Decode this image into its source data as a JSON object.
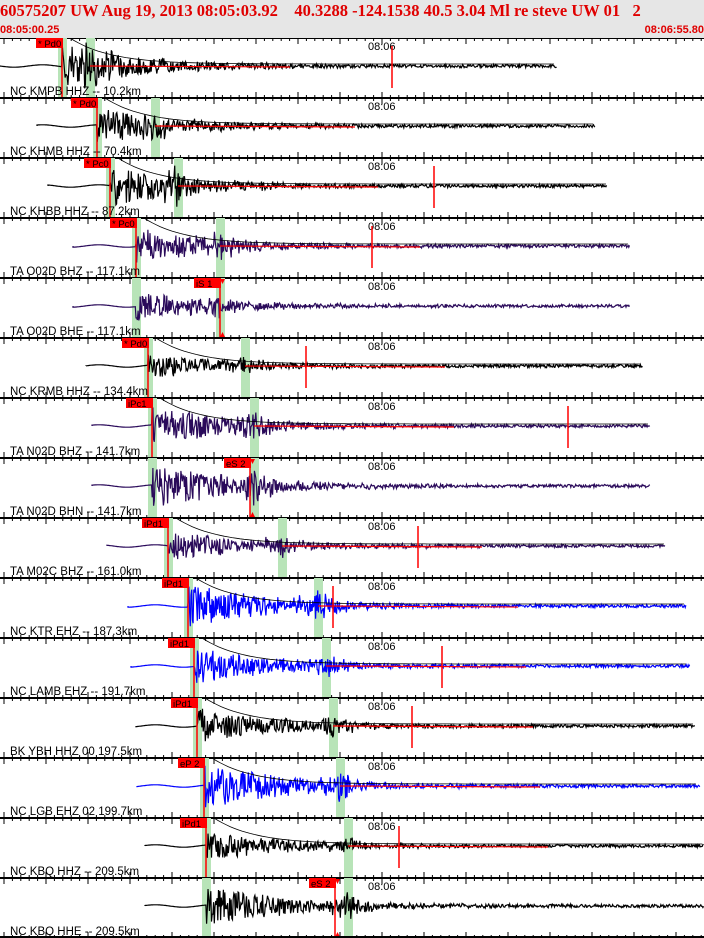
{
  "header": {
    "title": "60575207 UW Aug 19, 2013 08:05:03.92    40.3288 -124.1538 40.5 3.04 Ml re steve UW 01   2",
    "start_time": "08:05:00.25",
    "end_time": "08:06:55.80"
  },
  "minute_label": "08:06",
  "colors": {
    "pick": "#ff0000",
    "window": "#b8e4b8",
    "trace_black": "#000000",
    "trace_purple": "#2a0a5a",
    "trace_blue": "#0000ff",
    "header_bg": "#e6e6e6"
  },
  "channels": [
    {
      "label": "NC KMPB HHZ -- 10.2km",
      "pick": "* Pd0",
      "color": "black"
    },
    {
      "label": "NC KHMB HHZ -- 70.4km",
      "pick": "* Pd0",
      "color": "black"
    },
    {
      "label": "NC KHBB HHZ -- 87.2km",
      "pick": "* Pc0",
      "color": "black"
    },
    {
      "label": "TA O02D BHZ -- 117.1km",
      "pick": "* Pc0",
      "color": "purple"
    },
    {
      "label": "TA O02D BHE -- 117.1km",
      "pick": "iS 1",
      "color": "purple"
    },
    {
      "label": "NC KRMB HHZ -- 134.4km",
      "pick": "* Pd0",
      "color": "black"
    },
    {
      "label": "TA N02D BHZ -- 141.7km",
      "pick": "iPc1",
      "color": "purple"
    },
    {
      "label": "TA N02D BHN -- 141.7km",
      "pick": "eS 2",
      "color": "purple"
    },
    {
      "label": "TA M02C BHZ -- 161.0km",
      "pick": "iPd1",
      "color": "purple"
    },
    {
      "label": "NC KTR EHZ -- 187.3km",
      "pick": "iPd1",
      "color": "blue"
    },
    {
      "label": "NC LAMB EHZ -- 191.7km",
      "pick": "iPd1",
      "color": "blue"
    },
    {
      "label": "BK YBH HHZ 00 197.5km",
      "pick": "iPd1",
      "color": "black"
    },
    {
      "label": "NC LGB EHZ 02 199.7km",
      "pick": "eP 2",
      "color": "blue"
    },
    {
      "label": "NC KBQ HHZ -- 209.5km",
      "pick": "iPd1",
      "color": "black"
    },
    {
      "label": "NC KBQ HHE -- 209.5km",
      "pick": "eS 2",
      "color": "black"
    }
  ]
}
